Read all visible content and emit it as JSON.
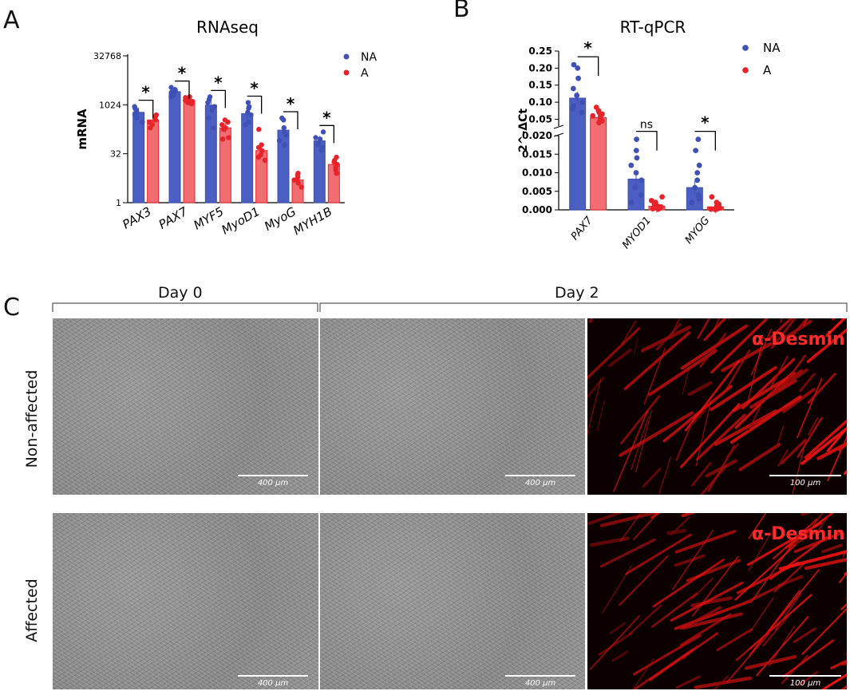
{
  "panels": {
    "a": {
      "letter": "A"
    },
    "b": {
      "letter": "B"
    },
    "c": {
      "letter": "C"
    }
  },
  "chart_data": [
    {
      "type": "bar",
      "title": "RNAseq",
      "ylabel": "mRNA",
      "xlabel": "",
      "yscale": "log2",
      "ylim": [
        1,
        32768
      ],
      "yticks": [
        1,
        32,
        1024,
        32768
      ],
      "categories": [
        "PAX3",
        "PAX7",
        "MYF5",
        "MyoD1",
        "MyoG",
        "MYH1B"
      ],
      "series": [
        {
          "name": "NA",
          "color": "#3f51b5",
          "values": [
            600,
            2600,
            1000,
            550,
            170,
            80
          ],
          "points": [
            [
              900,
              700,
              500,
              400,
              600,
              800,
              300
            ],
            [
              3500,
              2800,
              2200,
              2000,
              3000,
              2500,
              1800
            ],
            [
              1800,
              1500,
              900,
              700,
              1200,
              400,
              200
            ],
            [
              1200,
              900,
              600,
              300,
              500,
              800,
              250
            ],
            [
              400,
              350,
              200,
              120,
              80,
              60,
              150
            ],
            [
              150,
              100,
              70,
              60,
              90,
              50,
              40
            ]
          ]
        },
        {
          "name": "A",
          "color": "#e8232a",
          "values": [
            350,
            1400,
            200,
            40,
            5,
            15
          ],
          "points": [
            [
              500,
              400,
              300,
              250,
              350,
              200,
              450
            ],
            [
              1800,
              1500,
              1200,
              1300,
              1700,
              1100,
              1400
            ],
            [
              350,
              300,
              200,
              100,
              180,
              90,
              250
            ],
            [
              180,
              60,
              40,
              25,
              30,
              20,
              50
            ],
            [
              8,
              6,
              4,
              5,
              7,
              3,
              5
            ],
            [
              25,
              20,
              15,
              10,
              12,
              18,
              8
            ]
          ]
        }
      ],
      "significance": [
        "*",
        "*",
        "*",
        "*",
        "*",
        "*"
      ],
      "legend": "top-right"
    },
    {
      "type": "bar",
      "title": "RT-qPCR",
      "ylabel": "2^-ΔCt",
      "xlabel": "",
      "axis_break": true,
      "lower_ylim": [
        0,
        0.02
      ],
      "lower_yticks": [
        "0.000",
        "0.005",
        "0.010",
        "0.015",
        "0.020"
      ],
      "upper_ylim": [
        0.03,
        0.25
      ],
      "upper_yticks": [
        "0.05",
        "0.10",
        "0.15",
        "0.20",
        "0.25"
      ],
      "categories": [
        "PAX7",
        "MYOD1",
        "MYOG"
      ],
      "series": [
        {
          "name": "NA",
          "color": "#3f51b5",
          "values": [
            0.112,
            0.0083,
            0.006
          ],
          "points": [
            [
              0.21,
              0.2,
              0.17,
              0.14,
              0.12,
              0.1,
              0.09,
              0.08,
              0.07
            ],
            [
              0.019,
              0.016,
              0.014,
              0.012,
              0.01,
              0.008,
              0.006,
              0.004,
              0.002
            ],
            [
              0.019,
              0.016,
              0.012,
              0.01,
              0.008,
              0.006,
              0.004,
              0.003,
              0.002
            ]
          ]
        },
        {
          "name": "A",
          "color": "#e8232a",
          "values": [
            0.055,
            0.001,
            0.0008
          ],
          "points": [
            [
              0.085,
              0.075,
              0.07,
              0.065,
              0.06,
              0.055,
              0.05,
              0.045,
              0.04
            ],
            [
              0.0035,
              0.0025,
              0.002,
              0.0015,
              0.001,
              0.0008,
              0.0005,
              0.0003,
              0.0002
            ],
            [
              0.0035,
              0.002,
              0.0015,
              0.001,
              0.0008,
              0.0005,
              0.0003,
              0.0002,
              0.0001
            ]
          ]
        }
      ],
      "significance": [
        "*",
        "ns",
        "*"
      ],
      "legend": "top-right"
    }
  ],
  "panel_c": {
    "day0_label": "Day 0",
    "day2_label": "Day 2",
    "row_labels": [
      "Non-affected",
      "Affected"
    ],
    "stain_label": "α-Desmin",
    "scalebars": [
      "400 μm",
      "400 μm",
      "100 μm",
      "400 μm",
      "400 μm",
      "100 μm"
    ]
  }
}
